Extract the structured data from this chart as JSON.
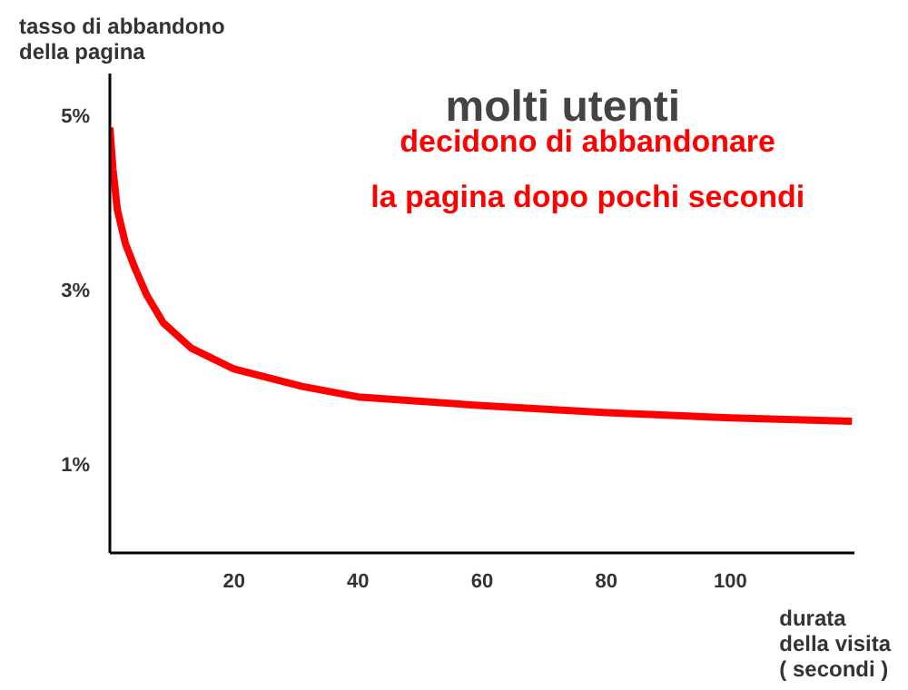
{
  "chart_data": {
    "type": "line",
    "title": "molti utenti",
    "subtitle": "decidono di abbandonare\nla pagina dopo pochi secondi",
    "ylabel": "tasso di abbandono\ndella pagina",
    "xlabel": "durata\ndella visita\n( secondi )",
    "x": [
      0,
      0.5,
      1.2,
      2.5,
      4.2,
      6,
      8.6,
      13.1,
      20,
      31,
      40,
      60,
      80,
      100,
      119.6
    ],
    "series": [
      {
        "color": "#ff0000",
        "values": [
          4.88,
          4.4,
          3.94,
          3.55,
          3.24,
          2.95,
          2.64,
          2.35,
          2.11,
          1.91,
          1.79,
          1.69,
          1.61,
          1.55,
          1.51
        ]
      }
    ],
    "xlim": [
      0,
      120
    ],
    "ylim": [
      0,
      5.5
    ],
    "xticks": [
      20,
      40,
      60,
      80,
      100
    ],
    "yticks": [
      {
        "value": 1,
        "label": "1%"
      },
      {
        "value": 3,
        "label": "3%"
      },
      {
        "value": 5,
        "label": "5%"
      }
    ],
    "grid": false,
    "marker": "none",
    "line_style": "solid"
  }
}
